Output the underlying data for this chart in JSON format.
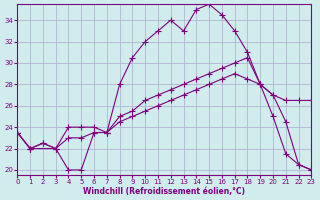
{
  "xlabel": "Windchill (Refroidissement éolien,°C)",
  "background_color": "#d0ecec",
  "line_color": "#800080",
  "grid_color": "#aaaacc",
  "xlim": [
    0,
    23
  ],
  "ylim": [
    19.5,
    35.5
  ],
  "yticks": [
    20,
    22,
    24,
    26,
    28,
    30,
    32,
    34
  ],
  "xticks": [
    0,
    1,
    2,
    3,
    4,
    5,
    6,
    7,
    8,
    9,
    10,
    11,
    12,
    13,
    14,
    15,
    16,
    17,
    18,
    19,
    20,
    21,
    22,
    23
  ],
  "line1_x": [
    0,
    1,
    3,
    4,
    5,
    6,
    7,
    8,
    9,
    10,
    11,
    12,
    13,
    14,
    15,
    16,
    17,
    18,
    19,
    20,
    21,
    22,
    23
  ],
  "line1_y": [
    23.5,
    22.0,
    22.0,
    20.0,
    20.0,
    23.5,
    23.5,
    28.0,
    30.5,
    32.0,
    33.0,
    34.0,
    33.0,
    35.0,
    35.5,
    34.5,
    33.0,
    31.0,
    28.0,
    25.0,
    21.5,
    20.5,
    20.0
  ],
  "line2_x": [
    0,
    1,
    2,
    3,
    4,
    5,
    6,
    7,
    8,
    9,
    10,
    11,
    12,
    13,
    14,
    15,
    16,
    17,
    18,
    19,
    20,
    21,
    22,
    23
  ],
  "line2_y": [
    23.5,
    22.0,
    22.5,
    22.0,
    23.0,
    23.0,
    23.5,
    23.5,
    25.0,
    25.5,
    26.5,
    27.0,
    27.5,
    28.0,
    28.5,
    29.0,
    29.5,
    30.0,
    30.5,
    28.0,
    27.0,
    26.5,
    26.5,
    26.5
  ],
  "line3_x": [
    0,
    1,
    2,
    3,
    4,
    5,
    6,
    7,
    8,
    9,
    10,
    11,
    12,
    13,
    14,
    15,
    16,
    17,
    18,
    19,
    20,
    21,
    22,
    23
  ],
  "line3_y": [
    23.5,
    22.0,
    22.5,
    22.0,
    24.0,
    24.0,
    24.0,
    23.5,
    24.5,
    25.0,
    25.5,
    26.0,
    26.5,
    27.0,
    27.5,
    28.0,
    28.5,
    29.0,
    28.5,
    28.0,
    27.0,
    24.5,
    20.5,
    20.0
  ]
}
